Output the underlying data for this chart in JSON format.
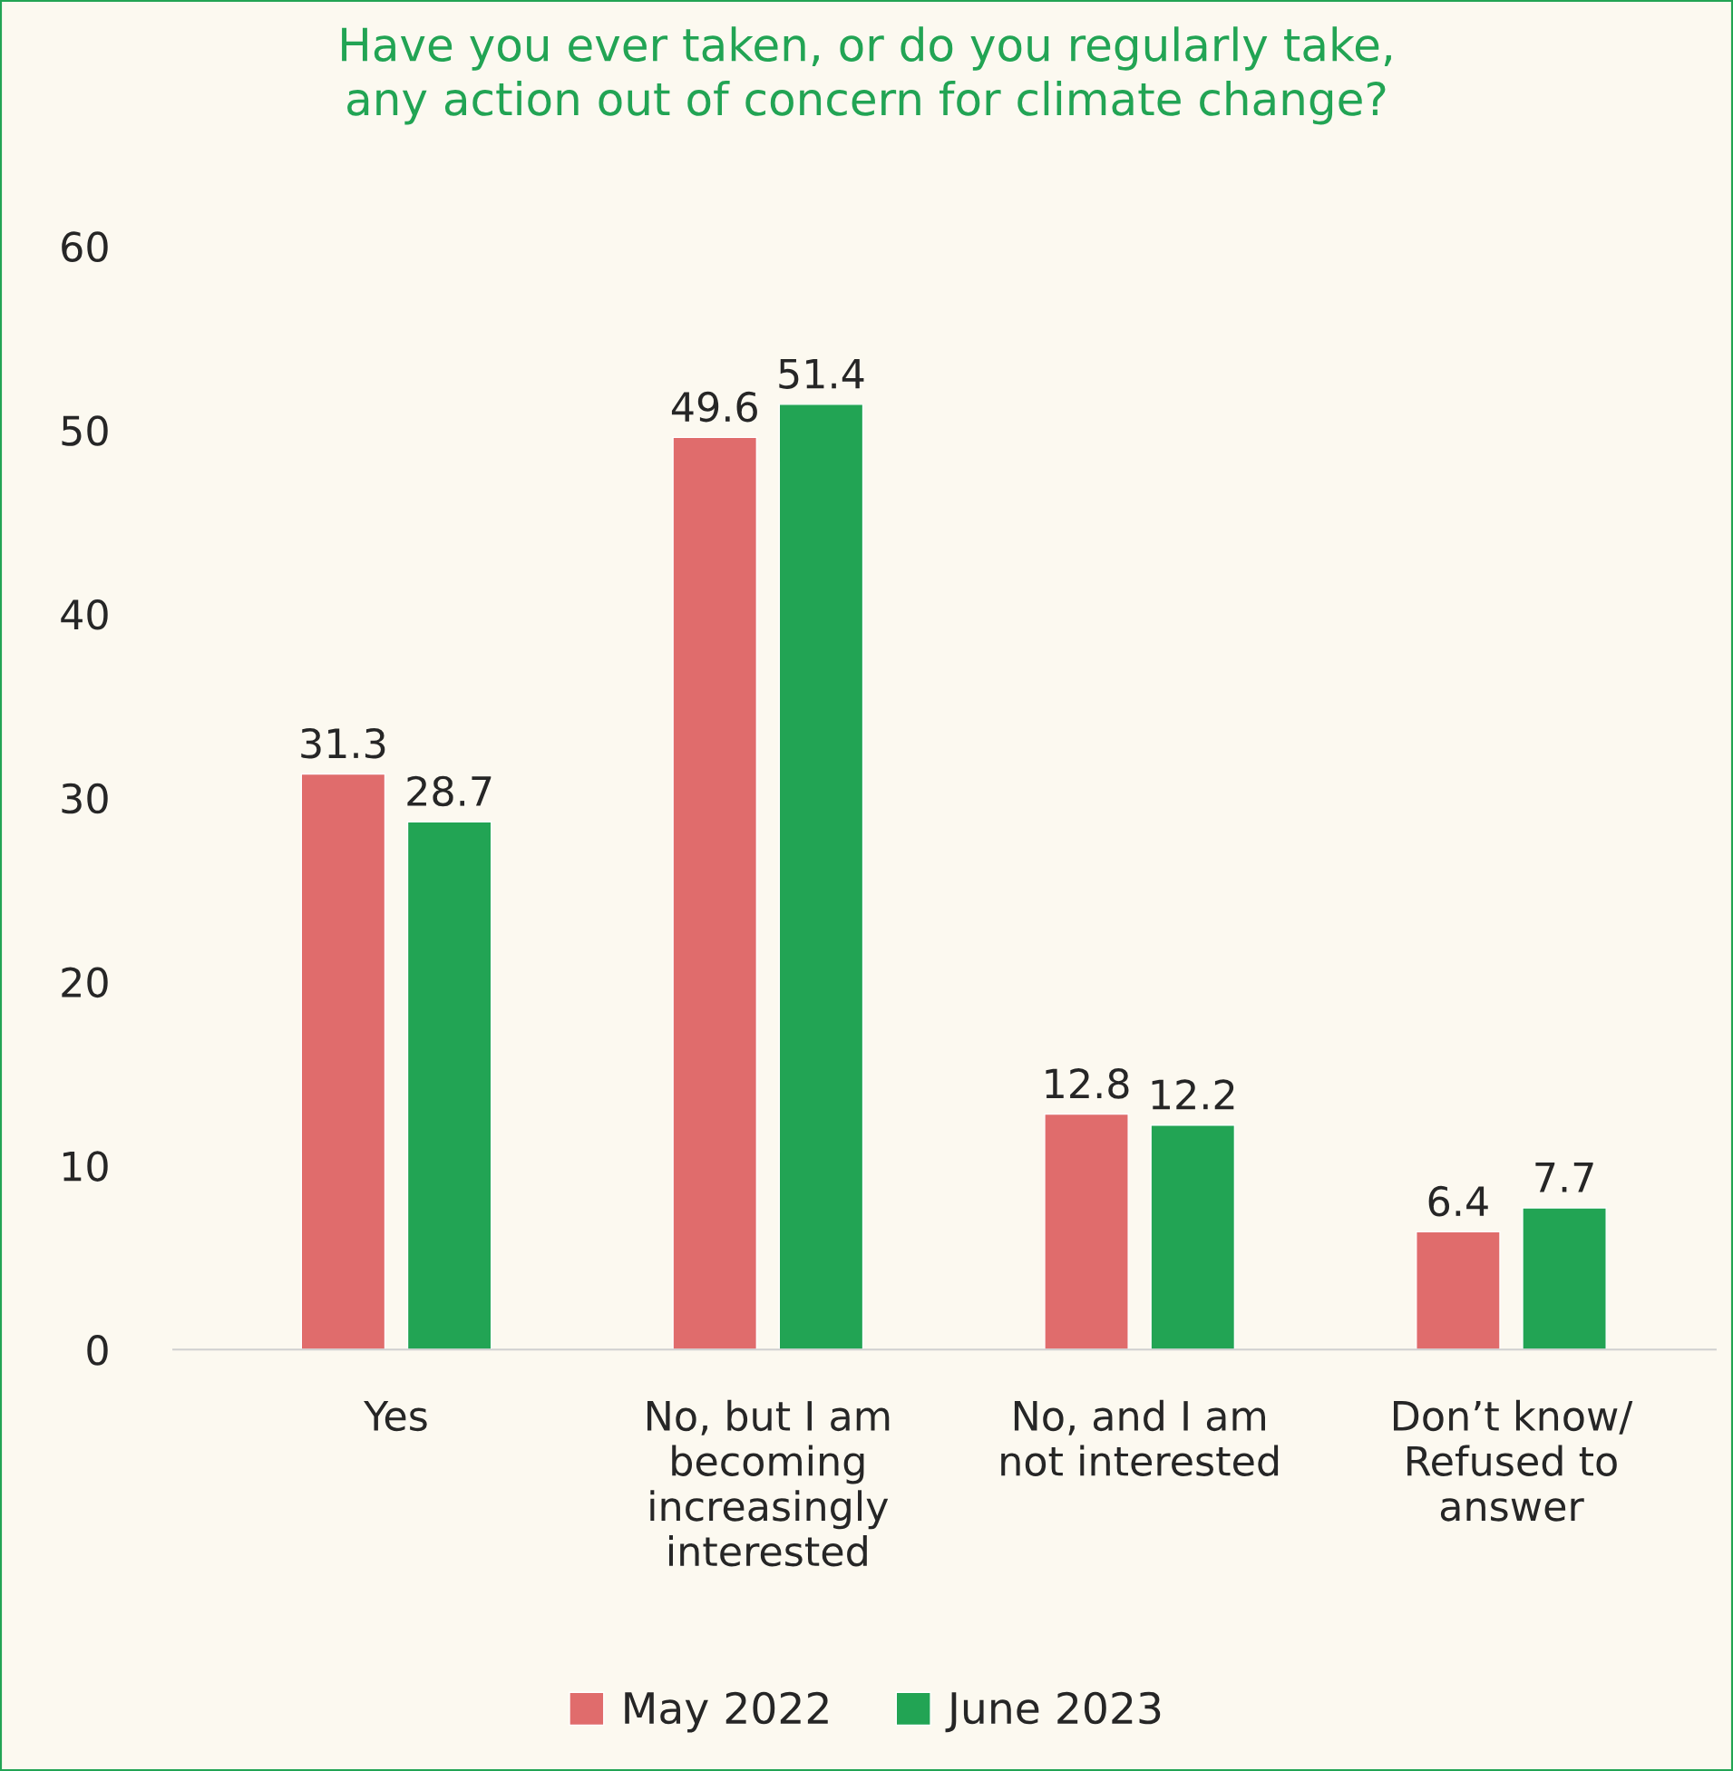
{
  "chart_data": {
    "type": "bar",
    "title": "Have you ever taken, or do you regularly take,\nany action out of concern for climate change?",
    "categories": [
      "Yes",
      "No, but I am\nbecoming\nincreasingly\ninterested",
      "No, and I am\nnot interested",
      "Don’t know/\nRefused to\nanswer"
    ],
    "series": [
      {
        "name": "May 2022",
        "color": "#e06c6c",
        "values": [
          31.3,
          49.6,
          12.8,
          6.4
        ]
      },
      {
        "name": "June 2023",
        "color": "#22a454",
        "values": [
          28.7,
          51.4,
          12.2,
          7.7
        ]
      }
    ],
    "ylim": [
      0,
      60
    ],
    "yticks": [
      0,
      10,
      20,
      30,
      40,
      50,
      60
    ],
    "data_labels": true,
    "grid": false,
    "legend": "bottom"
  }
}
